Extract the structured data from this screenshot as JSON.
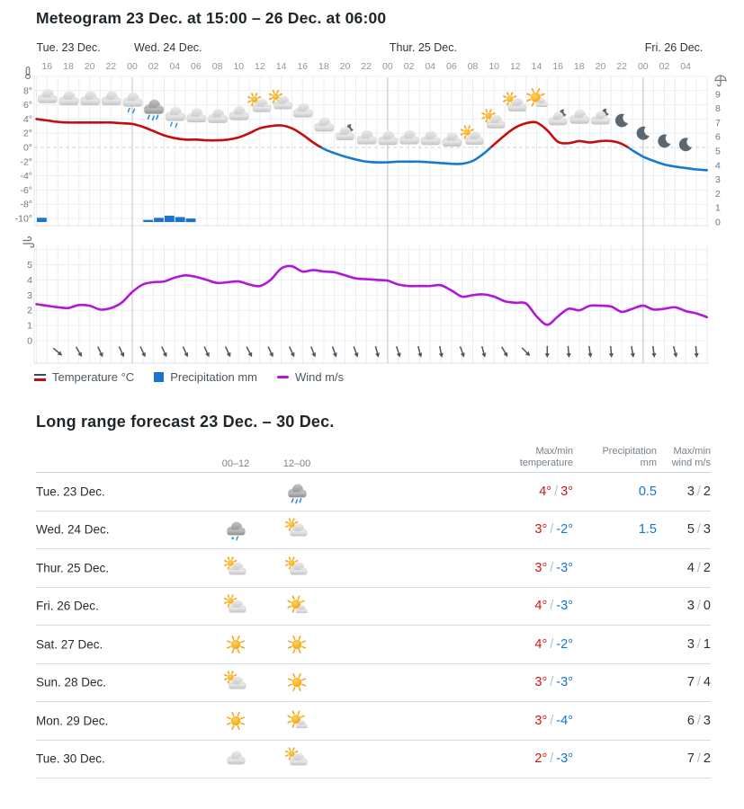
{
  "title": "Meteogram 23 Dec. at 15:00 – 26 Dec. at 06:00",
  "colors": {
    "temp_above": "#c60d0d",
    "temp_below": "#1878d2",
    "precip": "#1a74cf",
    "wind": "#b315dd",
    "table_red": "#d01414",
    "table_blue": "#0f76d6",
    "arrow": "#4d5761",
    "axis_text": "#6e777f",
    "hour_text": "#8d959c",
    "legend_temp_top": "#3c4856"
  },
  "chart_data": [
    {
      "type": "line",
      "title": "Meteogram 23 Dec. at 15:00 – 26 Dec. at 06:00",
      "x_start": "23 Dec. 15:00",
      "x_end": "26 Dec. 06:00",
      "x_step_hours": 1,
      "day_labels": [
        {
          "t": 0,
          "label": "Tue. 23 Dec."
        },
        {
          "t": 9,
          "label": "Wed. 24 Dec."
        },
        {
          "t": 33,
          "label": "Thur. 25 Dec."
        },
        {
          "t": 57,
          "label": "Fri. 26 Dec."
        }
      ],
      "hour_ticks": {
        "first_t": 1,
        "step": 2,
        "labels": [
          "16",
          "18",
          "20",
          "22",
          "00",
          "02",
          "04",
          "06",
          "08",
          "10",
          "12",
          "14",
          "16",
          "18",
          "20",
          "22",
          "00",
          "02",
          "04",
          "06",
          "08",
          "10",
          "12",
          "14",
          "16",
          "18",
          "20",
          "22",
          "00",
          "02",
          "04"
        ]
      },
      "temp_axis": {
        "ticks": [
          8,
          6,
          4,
          2,
          0,
          -2,
          -4,
          -6,
          -8,
          -10
        ],
        "unit": "°",
        "range": [
          -11,
          10
        ]
      },
      "precip_axis": {
        "ticks": [
          9,
          8,
          7,
          6,
          5,
          4,
          3,
          2,
          1,
          0
        ],
        "range": [
          0,
          10
        ]
      },
      "wind_axis": {
        "ticks": [
          5,
          4,
          3,
          2,
          1,
          0
        ],
        "range": [
          0,
          6
        ]
      },
      "series": [
        {
          "name": "Temperature °C",
          "values": [
            4.0,
            3.8,
            3.6,
            3.5,
            3.5,
            3.5,
            3.5,
            3.5,
            3.4,
            3.3,
            2.9,
            2.3,
            1.7,
            1.3,
            1.1,
            1.1,
            1.0,
            1.0,
            1.1,
            1.4,
            2.0,
            2.7,
            3.0,
            3.1,
            2.7,
            1.8,
            0.7,
            -0.2,
            -0.8,
            -1.3,
            -1.7,
            -2.0,
            -2.1,
            -2.1,
            -2.0,
            -2.0,
            -2.0,
            -2.1,
            -2.2,
            -2.3,
            -2.3,
            -1.9,
            -0.9,
            0.4,
            1.7,
            2.8,
            3.4,
            3.5,
            2.4,
            0.8,
            0.6,
            0.9,
            0.7,
            0.9,
            0.9,
            0.5,
            -0.4,
            -1.3,
            -1.9,
            -2.4,
            -2.7,
            -2.9,
            -3.1,
            -3.2
          ]
        },
        {
          "name": "Precipitation mm",
          "bars": [
            {
              "t": 0,
              "mm": 0.3
            },
            {
              "t": 10,
              "mm": 0.15
            },
            {
              "t": 11,
              "mm": 0.3
            },
            {
              "t": 12,
              "mm": 0.45
            },
            {
              "t": 13,
              "mm": 0.35
            },
            {
              "t": 14,
              "mm": 0.25
            }
          ]
        },
        {
          "name": "Wind m/s",
          "values": [
            2.4,
            2.3,
            2.2,
            2.15,
            2.35,
            2.3,
            2.05,
            2.15,
            2.5,
            3.2,
            3.7,
            3.85,
            3.9,
            4.15,
            4.3,
            4.2,
            4.0,
            3.8,
            3.85,
            3.9,
            3.7,
            3.6,
            4.0,
            4.75,
            4.9,
            4.55,
            4.65,
            4.55,
            4.5,
            4.3,
            4.1,
            4.05,
            4.0,
            3.95,
            3.7,
            3.6,
            3.6,
            3.6,
            3.65,
            3.3,
            2.9,
            3.0,
            3.05,
            2.9,
            2.6,
            2.5,
            2.45,
            1.6,
            1.05,
            1.6,
            2.1,
            2.0,
            2.3,
            2.3,
            2.25,
            1.9,
            2.1,
            2.3,
            2.05,
            2.1,
            2.2,
            1.95,
            1.8,
            1.55
          ]
        }
      ],
      "symbols": [
        {
          "t": 1,
          "type": "cloud"
        },
        {
          "t": 3,
          "type": "cloud"
        },
        {
          "t": 5,
          "type": "cloud"
        },
        {
          "t": 7,
          "type": "cloud"
        },
        {
          "t": 9,
          "type": "rain-light"
        },
        {
          "t": 11,
          "type": "rain"
        },
        {
          "t": 13,
          "type": "rain-light"
        },
        {
          "t": 15,
          "type": "cloud"
        },
        {
          "t": 17,
          "type": "cloud"
        },
        {
          "t": 19,
          "type": "cloud"
        },
        {
          "t": 21,
          "type": "partly-sunny"
        },
        {
          "t": 23,
          "type": "partly-sunny"
        },
        {
          "t": 25,
          "type": "cloud"
        },
        {
          "t": 27,
          "type": "cloud"
        },
        {
          "t": 29,
          "type": "moon-cloud"
        },
        {
          "t": 31,
          "type": "cloud"
        },
        {
          "t": 33,
          "type": "cloud"
        },
        {
          "t": 35,
          "type": "cloud"
        },
        {
          "t": 37,
          "type": "cloud"
        },
        {
          "t": 39,
          "type": "cloud"
        },
        {
          "t": 41,
          "type": "partly-sunny"
        },
        {
          "t": 43,
          "type": "partly-sunny"
        },
        {
          "t": 45,
          "type": "partly-sunny"
        },
        {
          "t": 47,
          "type": "sun-cloud"
        },
        {
          "t": 49,
          "type": "moon-cloud"
        },
        {
          "t": 51,
          "type": "cloud"
        },
        {
          "t": 53,
          "type": "moon-cloud"
        },
        {
          "t": 55,
          "type": "moon"
        },
        {
          "t": 57,
          "type": "moon"
        },
        {
          "t": 59,
          "type": "moon"
        },
        {
          "t": 61,
          "type": "moon"
        }
      ],
      "wind_arrows": [
        {
          "t": 2,
          "rot": -50
        },
        {
          "t": 4,
          "rot": -30
        },
        {
          "t": 6,
          "rot": -25
        },
        {
          "t": 8,
          "rot": -25
        },
        {
          "t": 10,
          "rot": -25
        },
        {
          "t": 12,
          "rot": -25
        },
        {
          "t": 14,
          "rot": -25
        },
        {
          "t": 16,
          "rot": -25
        },
        {
          "t": 18,
          "rot": -25
        },
        {
          "t": 20,
          "rot": -28
        },
        {
          "t": 22,
          "rot": -25
        },
        {
          "t": 24,
          "rot": -25
        },
        {
          "t": 26,
          "rot": -22
        },
        {
          "t": 28,
          "rot": -20
        },
        {
          "t": 30,
          "rot": -20
        },
        {
          "t": 32,
          "rot": -15
        },
        {
          "t": 34,
          "rot": -18
        },
        {
          "t": 36,
          "rot": -15
        },
        {
          "t": 38,
          "rot": -12
        },
        {
          "t": 40,
          "rot": -20
        },
        {
          "t": 42,
          "rot": -15
        },
        {
          "t": 44,
          "rot": -30
        },
        {
          "t": 46,
          "rot": -45
        },
        {
          "t": 48,
          "rot": 0
        },
        {
          "t": 50,
          "rot": -5
        },
        {
          "t": 52,
          "rot": -8
        },
        {
          "t": 54,
          "rot": -5
        },
        {
          "t": 56,
          "rot": -10
        },
        {
          "t": 58,
          "rot": -8
        },
        {
          "t": 60,
          "rot": -15
        },
        {
          "t": 62,
          "rot": -5
        }
      ],
      "legend": [
        {
          "label": "Temperature °C",
          "swatch": "temp"
        },
        {
          "label": "Precipitation mm",
          "swatch": "precip"
        },
        {
          "label": "Wind m/s",
          "swatch": "wind"
        }
      ]
    },
    {
      "type": "table",
      "title": "Long range forecast 23 Dec. – 30 Dec.",
      "col_headers": {
        "c1": "00–12",
        "c2": "12–00",
        "temp": [
          "Max/min",
          "temperature"
        ],
        "precip": [
          "Precipitation",
          "mm"
        ],
        "wind": [
          "Max/min",
          "wind m/s"
        ]
      },
      "rows": [
        {
          "day": "Tue. 23 Dec.",
          "icon_am": null,
          "icon_pm": "rain",
          "tmax": 4,
          "tmin": 3,
          "precip": "0.5",
          "wmax": 3,
          "wmin": 2
        },
        {
          "day": "Wed. 24 Dec.",
          "icon_am": "sleet",
          "icon_pm": "partly-sunny",
          "tmax": 3,
          "tmin": -2,
          "precip": "1.5",
          "wmax": 5,
          "wmin": 3
        },
        {
          "day": "Thur. 25 Dec.",
          "icon_am": "partly-sunny",
          "icon_pm": "partly-sunny",
          "tmax": 3,
          "tmin": -3,
          "precip": null,
          "wmax": 4,
          "wmin": 2
        },
        {
          "day": "Fri. 26 Dec.",
          "icon_am": "partly-sunny",
          "icon_pm": "sun-cloud",
          "tmax": 4,
          "tmin": -3,
          "precip": null,
          "wmax": 3,
          "wmin": 0
        },
        {
          "day": "Sat. 27 Dec.",
          "icon_am": "sunny",
          "icon_pm": "sunny",
          "tmax": 4,
          "tmin": -2,
          "precip": null,
          "wmax": 3,
          "wmin": 1
        },
        {
          "day": "Sun. 28 Dec.",
          "icon_am": "partly-sunny",
          "icon_pm": "sunny",
          "tmax": 3,
          "tmin": -3,
          "precip": null,
          "wmax": 7,
          "wmin": 4
        },
        {
          "day": "Mon. 29 Dec.",
          "icon_am": "sunny",
          "icon_pm": "sun-cloud",
          "tmax": 3,
          "tmin": -4,
          "precip": null,
          "wmax": 6,
          "wmin": 3
        },
        {
          "day": "Tue. 30 Dec.",
          "icon_am": "cloudy",
          "icon_pm": "partly-sunny",
          "tmax": 2,
          "tmin": -3,
          "precip": null,
          "wmax": 7,
          "wmin": 2
        }
      ]
    }
  ]
}
